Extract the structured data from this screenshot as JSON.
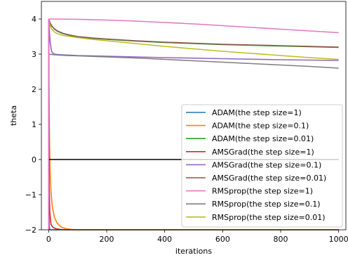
{
  "chart_data": {
    "type": "line",
    "title": "",
    "xlabel": "iterations",
    "ylabel": "theta",
    "xlim": [
      -25,
      1025
    ],
    "ylim": [
      -2,
      4.5
    ],
    "xticks": [
      0,
      200,
      400,
      600,
      800,
      1000
    ],
    "yticks": [
      -2,
      -1,
      0,
      1,
      2,
      3,
      4
    ],
    "xtick_labels": [
      "0",
      "200",
      "400",
      "600",
      "800",
      "1000"
    ],
    "ytick_labels": [
      "−2",
      "−1",
      "0",
      "1",
      "2",
      "3",
      "4"
    ],
    "grid": false,
    "legend_position": "lower-right",
    "series": [
      {
        "name": "ADAM(the step size=1)",
        "color": "#1f77b4",
        "x": [
          0,
          1,
          2,
          4,
          8,
          15,
          25,
          40,
          60,
          100,
          200,
          400,
          600,
          800,
          1000
        ],
        "y": [
          4,
          -1.2,
          -1.9,
          -2,
          -2,
          -2,
          -2,
          -2,
          -2,
          -2,
          -2,
          -2,
          -2,
          -2,
          -2
        ]
      },
      {
        "name": "ADAM(the step size=0.1)",
        "color": "#ff7f0e",
        "x": [
          0,
          1,
          2,
          3,
          5,
          8,
          12,
          20,
          30,
          45,
          60,
          80,
          100,
          150,
          200,
          300,
          400,
          600,
          800,
          1000
        ],
        "y": [
          4,
          2.2,
          1.2,
          0.5,
          -0.3,
          -0.9,
          -1.3,
          -1.65,
          -1.82,
          -1.93,
          -1.97,
          -1.99,
          -2,
          -2,
          -2,
          -2,
          -2,
          -2,
          -2,
          -2
        ]
      },
      {
        "name": "ADAM(the step size=0.01)",
        "color": "#2ca02c",
        "x": [
          0,
          2,
          5,
          10,
          20,
          30,
          50,
          75,
          100,
          150,
          200,
          300,
          400,
          500,
          600,
          700,
          800,
          900,
          1000
        ],
        "y": [
          4,
          3.95,
          3.88,
          3.8,
          3.71,
          3.65,
          3.58,
          3.53,
          3.49,
          3.45,
          3.42,
          3.37,
          3.33,
          3.3,
          3.27,
          3.25,
          3.23,
          3.21,
          3.19
        ]
      },
      {
        "name": "AMSGrad(the step size=1)",
        "color": "#d62728",
        "x": [
          0,
          1,
          2,
          4,
          8,
          15,
          25,
          40,
          60,
          80,
          100,
          200,
          400,
          600,
          800,
          1000
        ],
        "y": [
          4,
          0.5,
          -0.8,
          -1.5,
          -1.85,
          -1.93,
          -1.97,
          -1.99,
          -2,
          -2,
          -2,
          -2,
          -2,
          -2,
          -2,
          -2
        ]
      },
      {
        "name": "AMSGrad(the step size=0.1)",
        "color": "#9467bd",
        "x": [
          0,
          2,
          5,
          10,
          15,
          20,
          30,
          50,
          100,
          200,
          400,
          600,
          800,
          1000
        ],
        "y": [
          4,
          3.7,
          3.35,
          3.08,
          3.02,
          3.0,
          2.99,
          2.98,
          2.96,
          2.94,
          2.9,
          2.87,
          2.84,
          2.82
        ]
      },
      {
        "name": "AMSGrad(the step size=0.01)",
        "color": "#8c564b",
        "x": [
          0,
          2,
          5,
          10,
          20,
          30,
          50,
          75,
          100,
          150,
          200,
          300,
          400,
          500,
          600,
          700,
          800,
          900,
          1000
        ],
        "y": [
          4,
          3.96,
          3.89,
          3.81,
          3.72,
          3.66,
          3.59,
          3.54,
          3.5,
          3.46,
          3.43,
          3.38,
          3.34,
          3.31,
          3.28,
          3.26,
          3.24,
          3.22,
          3.2
        ]
      },
      {
        "name": "RMSprop(the step size=1)",
        "color": "#e377c2",
        "x": [
          0,
          100,
          200,
          300,
          400,
          500,
          600,
          700,
          800,
          900,
          1000
        ],
        "y": [
          4,
          3.99,
          3.97,
          3.94,
          3.9,
          3.86,
          3.81,
          3.76,
          3.71,
          3.66,
          3.61
        ]
      },
      {
        "name": "RMSprop(the step size=0.1)",
        "color": "#7f7f7f",
        "x": [
          0,
          5,
          10,
          20,
          40,
          60,
          100,
          200,
          300,
          400,
          500,
          600,
          700,
          800,
          900,
          1000
        ],
        "y": [
          3,
          2.99,
          2.99,
          2.98,
          2.97,
          2.96,
          2.95,
          2.92,
          2.89,
          2.85,
          2.81,
          2.77,
          2.73,
          2.69,
          2.65,
          2.6
        ]
      },
      {
        "name": "RMSprop(the step size=0.01)",
        "color": "#bcbd22",
        "x": [
          0,
          2,
          5,
          10,
          20,
          30,
          50,
          75,
          100,
          150,
          200,
          300,
          400,
          500,
          600,
          700,
          800,
          900,
          1000
        ],
        "y": [
          4,
          3.9,
          3.8,
          3.72,
          3.63,
          3.58,
          3.53,
          3.5,
          3.47,
          3.42,
          3.38,
          3.3,
          3.22,
          3.15,
          3.08,
          3.02,
          2.96,
          2.9,
          2.85
        ]
      },
      {
        "color": "#000000",
        "x": [
          0,
          1000
        ],
        "y": [
          0,
          0
        ]
      },
      {
        "color": "#e377c2",
        "x": [
          0,
          0
        ],
        "y": [
          4,
          -2
        ]
      }
    ]
  }
}
